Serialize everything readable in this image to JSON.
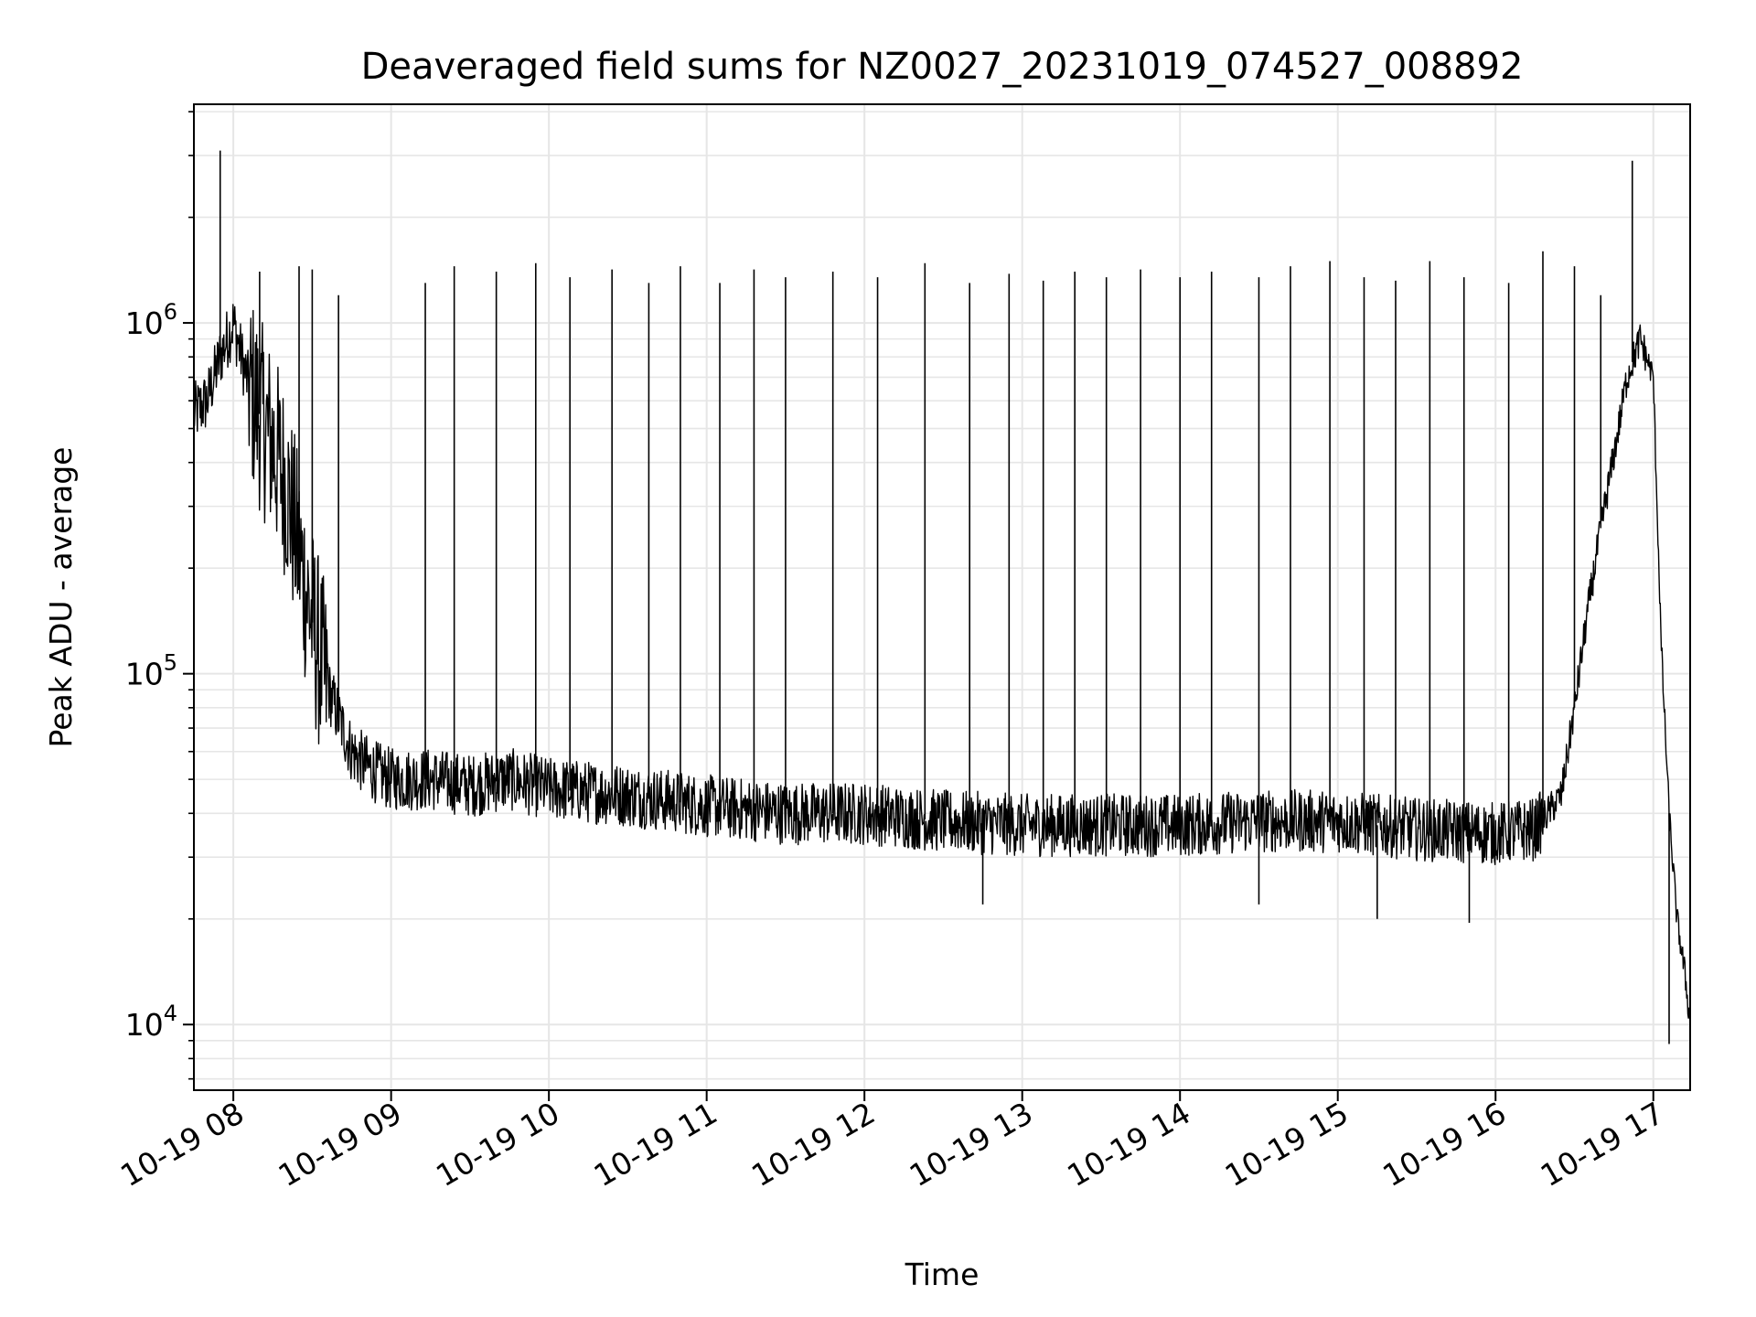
{
  "chart_data": {
    "type": "line",
    "title": "Deaveraged field sums for NZ0027_20231019_074527_008892",
    "xlabel": "Time",
    "ylabel": "Peak ADU - average",
    "y_scale": "log",
    "ylim": [
      6500,
      4200000
    ],
    "xlim": [
      "2023-10-19 07:45",
      "2023-10-19 17:14"
    ],
    "grid": true,
    "line_color": "#000000",
    "grid_color": "#e6e6e6",
    "x_ticks": [
      {
        "value": "2023-10-19 08:00",
        "label": "10-19 08"
      },
      {
        "value": "2023-10-19 09:00",
        "label": "10-19 09"
      },
      {
        "value": "2023-10-19 10:00",
        "label": "10-19 10"
      },
      {
        "value": "2023-10-19 11:00",
        "label": "10-19 11"
      },
      {
        "value": "2023-10-19 12:00",
        "label": "10-19 12"
      },
      {
        "value": "2023-10-19 13:00",
        "label": "10-19 13"
      },
      {
        "value": "2023-10-19 14:00",
        "label": "10-19 14"
      },
      {
        "value": "2023-10-19 15:00",
        "label": "10-19 15"
      },
      {
        "value": "2023-10-19 16:00",
        "label": "10-19 16"
      },
      {
        "value": "2023-10-19 17:00",
        "label": "10-19 17"
      }
    ],
    "y_ticks": [
      {
        "value": 10000,
        "base": "10",
        "exp": "4"
      },
      {
        "value": 100000,
        "base": "10",
        "exp": "5"
      },
      {
        "value": 1000000,
        "base": "10",
        "exp": "6"
      }
    ],
    "series": [
      {
        "x": [
          "2023-10-19 07:45",
          "2023-10-19 07:50",
          "2023-10-19 07:55",
          "2023-10-19 08:00",
          "2023-10-19 08:05",
          "2023-10-19 08:10",
          "2023-10-19 08:15",
          "2023-10-19 08:20",
          "2023-10-19 08:25",
          "2023-10-19 08:30",
          "2023-10-19 08:35",
          "2023-10-19 08:40",
          "2023-10-19 08:45",
          "2023-10-19 08:50",
          "2023-10-19 08:55",
          "2023-10-19 09:00",
          "2023-10-19 09:15",
          "2023-10-19 09:30",
          "2023-10-19 09:45",
          "2023-10-19 10:00",
          "2023-10-19 10:30",
          "2023-10-19 11:00",
          "2023-10-19 11:30",
          "2023-10-19 12:00",
          "2023-10-19 12:30",
          "2023-10-19 13:00",
          "2023-10-19 13:30",
          "2023-10-19 14:00",
          "2023-10-19 14:30",
          "2023-10-19 15:00",
          "2023-10-19 15:30",
          "2023-10-19 16:00",
          "2023-10-19 16:15",
          "2023-10-19 16:25",
          "2023-10-19 16:30",
          "2023-10-19 16:35",
          "2023-10-19 16:40",
          "2023-10-19 16:45",
          "2023-10-19 16:50",
          "2023-10-19 16:55",
          "2023-10-19 17:00",
          "2023-10-19 17:03",
          "2023-10-19 17:06",
          "2023-10-19 17:09",
          "2023-10-19 17:12",
          "2023-10-19 17:14"
        ],
        "y": [
          550000,
          600000,
          800000,
          1000000,
          700000,
          550000,
          450000,
          350000,
          220000,
          140000,
          95000,
          75000,
          60000,
          55000,
          52000,
          50000,
          50000,
          48000,
          50000,
          47000,
          45000,
          42000,
          40000,
          40000,
          38000,
          37000,
          37000,
          37000,
          38000,
          38000,
          36000,
          35000,
          36000,
          45000,
          80000,
          150000,
          260000,
          420000,
          700000,
          900000,
          700000,
          120000,
          40000,
          20000,
          14000,
          10000
        ]
      }
    ],
    "spikes": [
      {
        "x": "2023-10-19 07:55",
        "y": 3100000
      },
      {
        "x": "2023-10-19 08:10",
        "y": 1400000
      },
      {
        "x": "2023-10-19 08:25",
        "y": 1450000
      },
      {
        "x": "2023-10-19 08:30",
        "y": 1420000
      },
      {
        "x": "2023-10-19 08:40",
        "y": 1200000
      },
      {
        "x": "2023-10-19 09:13",
        "y": 1300000
      },
      {
        "x": "2023-10-19 09:24",
        "y": 1450000
      },
      {
        "x": "2023-10-19 09:40",
        "y": 1400000
      },
      {
        "x": "2023-10-19 09:55",
        "y": 1480000
      },
      {
        "x": "2023-10-19 10:08",
        "y": 1350000
      },
      {
        "x": "2023-10-19 10:24",
        "y": 1420000
      },
      {
        "x": "2023-10-19 10:38",
        "y": 1300000
      },
      {
        "x": "2023-10-19 10:50",
        "y": 1450000
      },
      {
        "x": "2023-10-19 11:05",
        "y": 1300000
      },
      {
        "x": "2023-10-19 11:18",
        "y": 1420000
      },
      {
        "x": "2023-10-19 11:30",
        "y": 1350000
      },
      {
        "x": "2023-10-19 11:48",
        "y": 1400000
      },
      {
        "x": "2023-10-19 12:05",
        "y": 1350000
      },
      {
        "x": "2023-10-19 12:23",
        "y": 1480000
      },
      {
        "x": "2023-10-19 12:40",
        "y": 1300000
      },
      {
        "x": "2023-10-19 12:55",
        "y": 1380000
      },
      {
        "x": "2023-10-19 13:08",
        "y": 1320000
      },
      {
        "x": "2023-10-19 13:20",
        "y": 1400000
      },
      {
        "x": "2023-10-19 13:32",
        "y": 1350000
      },
      {
        "x": "2023-10-19 13:45",
        "y": 1420000
      },
      {
        "x": "2023-10-19 14:00",
        "y": 1350000
      },
      {
        "x": "2023-10-19 14:12",
        "y": 1400000
      },
      {
        "x": "2023-10-19 14:30",
        "y": 1350000
      },
      {
        "x": "2023-10-19 14:42",
        "y": 1450000
      },
      {
        "x": "2023-10-19 14:57",
        "y": 1500000
      },
      {
        "x": "2023-10-19 15:10",
        "y": 1350000
      },
      {
        "x": "2023-10-19 15:22",
        "y": 1320000
      },
      {
        "x": "2023-10-19 15:35",
        "y": 1500000
      },
      {
        "x": "2023-10-19 15:48",
        "y": 1350000
      },
      {
        "x": "2023-10-19 16:05",
        "y": 1300000
      },
      {
        "x": "2023-10-19 16:18",
        "y": 1600000
      },
      {
        "x": "2023-10-19 16:30",
        "y": 1450000
      },
      {
        "x": "2023-10-19 16:40",
        "y": 1200000
      },
      {
        "x": "2023-10-19 16:52",
        "y": 2900000
      }
    ],
    "dips": [
      {
        "x": "2023-10-19 12:45",
        "y": 22000
      },
      {
        "x": "2023-10-19 14:30",
        "y": 22000
      },
      {
        "x": "2023-10-19 15:15",
        "y": 20000
      },
      {
        "x": "2023-10-19 15:50",
        "y": 19500
      },
      {
        "x": "2023-10-19 17:06",
        "y": 8800
      }
    ]
  }
}
